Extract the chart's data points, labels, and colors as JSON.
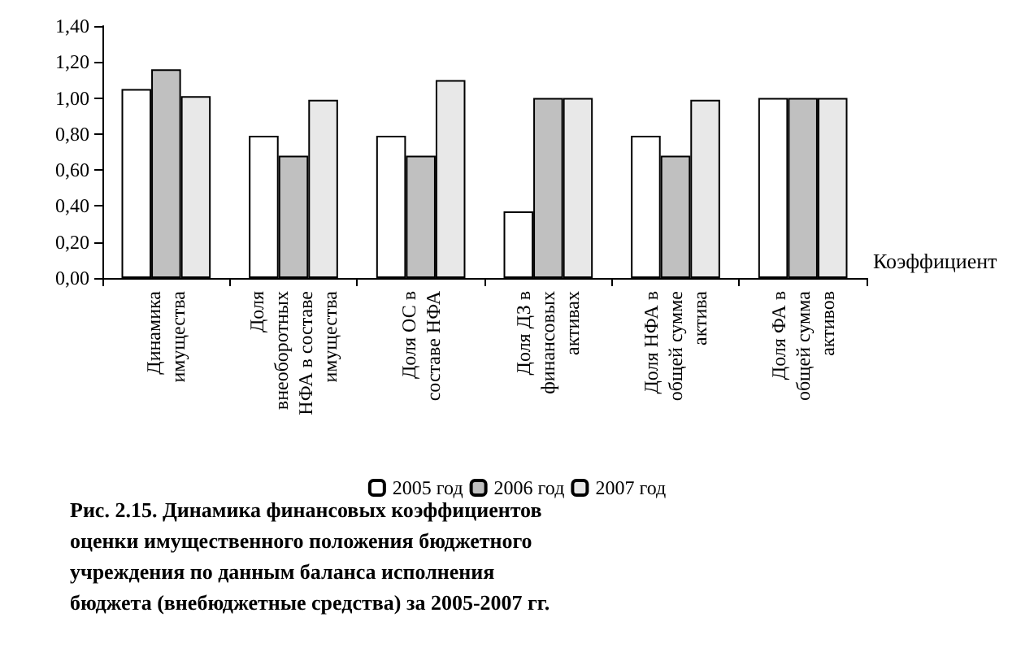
{
  "chart_data": {
    "type": "bar",
    "title": "Рис. 2.15. Динамика финансовых коэффициентов оценки имущественного положения бюджетного учреждения по данным баланса исполнения бюджета (внебюджетные средства) за 2005-2007 гг.",
    "xlabel": "Коэффициент",
    "categories": [
      "Динамика имущества",
      "Доля внеоборотных НФА в составе имущества",
      "Доля ОС в составе НФА",
      "Доля ДЗ в финансовых активах",
      "Доля НФА в общей сумме актива",
      "Доля ФА в общей сумма активов"
    ],
    "series": [
      {
        "name": "2005 год",
        "color": "#ffffff",
        "values": [
          1.05,
          0.79,
          0.79,
          0.37,
          0.79,
          1.0
        ]
      },
      {
        "name": "2006 год",
        "color": "#c0c0c0",
        "values": [
          1.16,
          0.68,
          0.68,
          1.0,
          0.68,
          1.0
        ]
      },
      {
        "name": "2007 год",
        "color": "#e8e8e8",
        "values": [
          1.01,
          0.99,
          1.1,
          1.0,
          0.99,
          1.0
        ]
      }
    ],
    "ylim": [
      0,
      1.4
    ],
    "yticks": [
      {
        "value": 0,
        "label": "0,00"
      },
      {
        "value": 0.2,
        "label": "0,20"
      },
      {
        "value": 0.4,
        "label": "0,40"
      },
      {
        "value": 0.6,
        "label": "0,60"
      },
      {
        "value": 0.8,
        "label": "0,80"
      },
      {
        "value": 1.0,
        "label": "1,00"
      },
      {
        "value": 1.2,
        "label": "1,20"
      },
      {
        "value": 1.4,
        "label": "1,40"
      }
    ],
    "grid": false,
    "legend": "bottom"
  }
}
